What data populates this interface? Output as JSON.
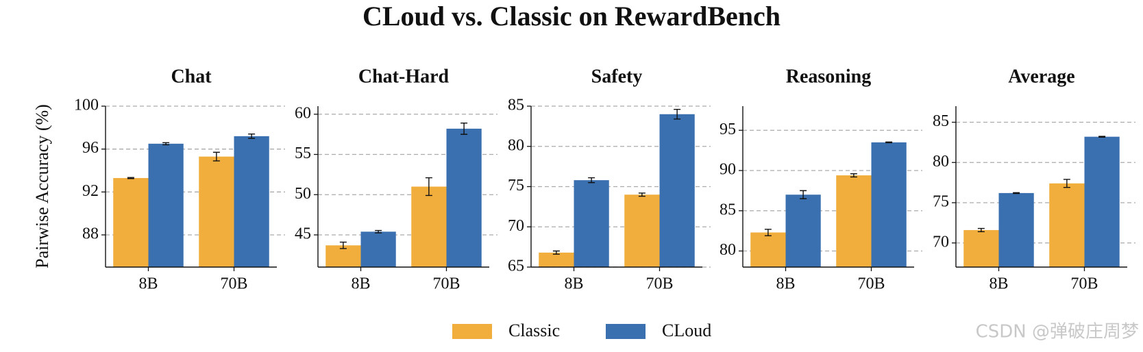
{
  "title": "CLoud vs. Classic on RewardBench",
  "watermark": "CSDN @弹破庄周梦",
  "chart_data": [
    {
      "type": "bar",
      "title": "Chat",
      "y_label": "Pairwise Accuracy (%)",
      "categories": [
        "8B",
        "70B"
      ],
      "series": [
        {
          "name": "Classic",
          "color": "#f2ae3c",
          "values": [
            93.3,
            95.3
          ],
          "errors": [
            0.05,
            0.4
          ]
        },
        {
          "name": "CLoud",
          "color": "#3b70b0",
          "values": [
            96.5,
            97.2
          ],
          "errors": [
            0.1,
            0.2
          ]
        }
      ],
      "ylim": [
        85,
        100
      ],
      "yticks": [
        88,
        92,
        96,
        100
      ],
      "grid": true
    },
    {
      "type": "bar",
      "title": "Chat-Hard",
      "categories": [
        "8B",
        "70B"
      ],
      "series": [
        {
          "name": "Classic",
          "color": "#f2ae3c",
          "values": [
            43.7,
            51.0
          ],
          "errors": [
            0.4,
            1.1
          ]
        },
        {
          "name": "CLoud",
          "color": "#3b70b0",
          "values": [
            45.4,
            58.2
          ],
          "errors": [
            0.15,
            0.7
          ]
        }
      ],
      "ylim": [
        41,
        61
      ],
      "yticks": [
        45,
        50,
        55,
        60
      ],
      "grid": true
    },
    {
      "type": "bar",
      "title": "Safety",
      "categories": [
        "8B",
        "70B"
      ],
      "series": [
        {
          "name": "Classic",
          "color": "#f2ae3c",
          "values": [
            66.8,
            74.0
          ],
          "errors": [
            0.2,
            0.2
          ]
        },
        {
          "name": "CLoud",
          "color": "#3b70b0",
          "values": [
            75.8,
            84.0
          ],
          "errors": [
            0.3,
            0.6
          ]
        }
      ],
      "ylim": [
        65,
        85
      ],
      "yticks": [
        65,
        70,
        75,
        80,
        85
      ],
      "grid": true
    },
    {
      "type": "bar",
      "title": "Reasoning",
      "categories": [
        "8B",
        "70B"
      ],
      "series": [
        {
          "name": "Classic",
          "color": "#f2ae3c",
          "values": [
            82.3,
            89.4
          ],
          "errors": [
            0.4,
            0.2
          ]
        },
        {
          "name": "CLoud",
          "color": "#3b70b0",
          "values": [
            87.0,
            93.5
          ],
          "errors": [
            0.5,
            0.05
          ]
        }
      ],
      "ylim": [
        78,
        98
      ],
      "yticks": [
        80,
        85,
        90,
        95
      ],
      "grid": true
    },
    {
      "type": "bar",
      "title": "Average",
      "categories": [
        "8B",
        "70B"
      ],
      "series": [
        {
          "name": "Classic",
          "color": "#f2ae3c",
          "values": [
            71.6,
            77.4
          ],
          "errors": [
            0.2,
            0.5
          ]
        },
        {
          "name": "CLoud",
          "color": "#3b70b0",
          "values": [
            76.2,
            83.2
          ],
          "errors": [
            0.05,
            0.05
          ]
        }
      ],
      "ylim": [
        67,
        87
      ],
      "yticks": [
        70,
        75,
        80,
        85
      ],
      "grid": true
    }
  ]
}
